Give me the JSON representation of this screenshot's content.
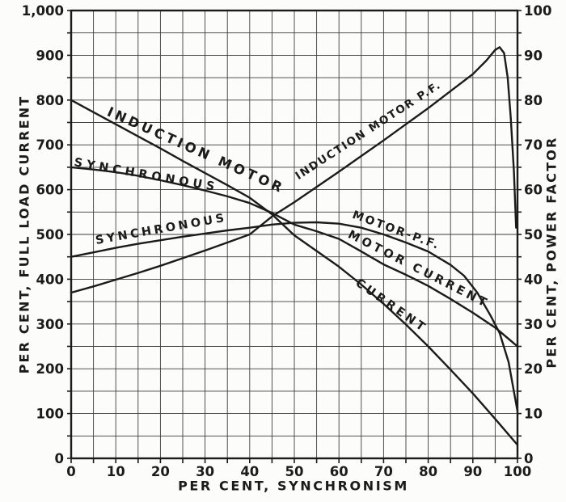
{
  "chart_data": {
    "type": "line",
    "title": "",
    "xlabel": "PER CENT, SYNCHRONISM",
    "ylabel_left": "PER CENT, FULL LOAD CURRENT",
    "ylabel_right": "PER CENT, POWER FACTOR",
    "x_range": [
      0,
      100
    ],
    "y_left_range": [
      0,
      1000
    ],
    "y_right_range": [
      0,
      100
    ],
    "grid": {
      "on": true,
      "x_minor_step": 5,
      "y_minor_step_left": 50
    },
    "legend": "none (labels drawn along curves)",
    "x_tick_labels": [
      "0",
      "10",
      "20",
      "30",
      "40",
      "50",
      "60",
      "70",
      "80",
      "90",
      "100"
    ],
    "y_left_tick_labels": [
      "1,000",
      "900",
      "800",
      "700",
      "600",
      "500",
      "400",
      "300",
      "200",
      "100",
      "0"
    ],
    "y_right_tick_labels": [
      "100",
      "90",
      "80",
      "70",
      "60",
      "50",
      "40",
      "30",
      "20",
      "10",
      "0"
    ],
    "colors": {
      "ink": "#1b1b1b",
      "grid": "#3d3d3d",
      "paper": "#fcfcfa"
    },
    "series": [
      {
        "name": "induction-motor-current",
        "label": "INDUCTION MOTOR CURRENT",
        "axis": "left",
        "points": [
          [
            0,
            800
          ],
          [
            5,
            773
          ],
          [
            10,
            746
          ],
          [
            15,
            719
          ],
          [
            20,
            692
          ],
          [
            25,
            664
          ],
          [
            30,
            637
          ],
          [
            35,
            610
          ],
          [
            40,
            582
          ],
          [
            45,
            545
          ],
          [
            50,
            498
          ],
          [
            55,
            463
          ],
          [
            60,
            428
          ],
          [
            65,
            388
          ],
          [
            70,
            345
          ],
          [
            75,
            299
          ],
          [
            80,
            250
          ],
          [
            85,
            198
          ],
          [
            90,
            145
          ],
          [
            95,
            88
          ],
          [
            100,
            30
          ]
        ]
      },
      {
        "name": "synchronous-motor-current",
        "label": "SYNCHRONOUS MOTOR CURRENT",
        "axis": "left",
        "points": [
          [
            0,
            650
          ],
          [
            5,
            645
          ],
          [
            10,
            639
          ],
          [
            15,
            631
          ],
          [
            20,
            621
          ],
          [
            25,
            610
          ],
          [
            30,
            598
          ],
          [
            35,
            585
          ],
          [
            40,
            570
          ],
          [
            45,
            548
          ],
          [
            50,
            522
          ],
          [
            55,
            507
          ],
          [
            60,
            490
          ],
          [
            65,
            462
          ],
          [
            70,
            433
          ],
          [
            75,
            410
          ],
          [
            80,
            385
          ],
          [
            85,
            356
          ],
          [
            90,
            325
          ],
          [
            95,
            292
          ],
          [
            100,
            250
          ]
        ]
      },
      {
        "name": "synchronous-motor-pf",
        "label": "SYNCHRONOUS MOTOR-P.F.",
        "axis": "right",
        "points": [
          [
            0,
            45
          ],
          [
            5,
            46
          ],
          [
            10,
            47
          ],
          [
            15,
            47.9
          ],
          [
            20,
            48.7
          ],
          [
            25,
            49.5
          ],
          [
            30,
            50.2
          ],
          [
            35,
            50.9
          ],
          [
            40,
            51.5
          ],
          [
            45,
            52.2
          ],
          [
            50,
            52.6
          ],
          [
            55,
            52.7
          ],
          [
            60,
            52.4
          ],
          [
            65,
            51.5
          ],
          [
            70,
            50
          ],
          [
            75,
            48.2
          ],
          [
            80,
            46.2
          ],
          [
            85,
            43.2
          ],
          [
            88,
            40.8
          ],
          [
            91,
            37
          ],
          [
            94,
            31.8
          ],
          [
            96,
            28
          ],
          [
            98,
            21.5
          ],
          [
            100,
            10.5
          ]
        ]
      },
      {
        "name": "induction-motor-pf",
        "label": "INDUCTION MOTOR P.F.",
        "axis": "right",
        "points": [
          [
            0,
            37
          ],
          [
            5,
            38.4
          ],
          [
            10,
            39.9
          ],
          [
            15,
            41.4
          ],
          [
            20,
            43
          ],
          [
            25,
            44.7
          ],
          [
            30,
            46.4
          ],
          [
            35,
            48.2
          ],
          [
            40,
            50
          ],
          [
            45,
            54
          ],
          [
            50,
            57.2
          ],
          [
            55,
            60.6
          ],
          [
            60,
            64
          ],
          [
            65,
            67.5
          ],
          [
            70,
            71
          ],
          [
            75,
            74.6
          ],
          [
            80,
            78.2
          ],
          [
            85,
            82
          ],
          [
            90,
            85.8
          ],
          [
            93,
            88.8
          ],
          [
            95,
            91.2
          ],
          [
            96,
            91.8
          ],
          [
            97,
            90.5
          ],
          [
            97.8,
            85
          ],
          [
            98.5,
            76
          ],
          [
            99.2,
            64
          ],
          [
            99.7,
            51.5
          ]
        ]
      }
    ],
    "annotations": [
      {
        "name": "label-induction-motor",
        "text": "INDUCTION MOTOR",
        "x": 27.6,
        "y": 688,
        "rotate": 24,
        "size": 16.5,
        "spacing": 4
      },
      {
        "name": "label-synchronous-upper",
        "text": "SYNCHRONOUS",
        "x": 16.7,
        "y": 634,
        "rotate": 10,
        "size": 14.5,
        "spacing": 5
      },
      {
        "name": "label-synchronous-lower",
        "text": "SYNCHRONOUS",
        "x": 20.3,
        "y": 513,
        "rotate": -10,
        "size": 14.5,
        "spacing": 3.5
      },
      {
        "name": "label-induction-motor-pf",
        "text": "INDUCTION MOTOR P.F.",
        "x": 67.0,
        "y": 735,
        "rotate": -33,
        "size": 13.5,
        "spacing": 1.8
      },
      {
        "name": "label-motor-pf",
        "text": "MOTOR-P.F.",
        "x": 72.6,
        "y": 511,
        "rotate": 20,
        "size": 14,
        "spacing": 2.5
      },
      {
        "name": "label-motor-current",
        "text": "MOTOR CURRENT",
        "x": 77.5,
        "y": 424,
        "rotate": 27,
        "size": 14.5,
        "spacing": 4
      },
      {
        "name": "label-current",
        "text": "CURRENT",
        "x": 71.3,
        "y": 343,
        "rotate": 35,
        "size": 14.5,
        "spacing": 4
      }
    ]
  }
}
